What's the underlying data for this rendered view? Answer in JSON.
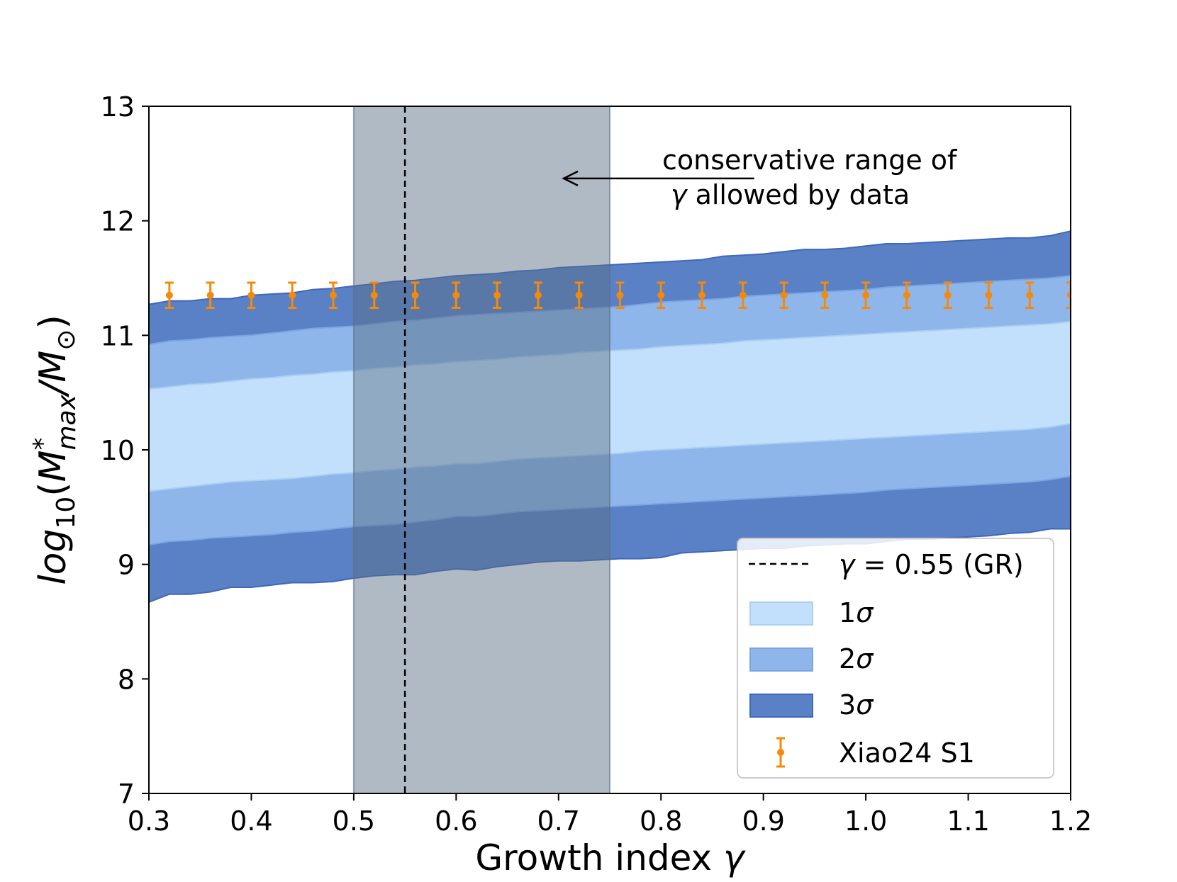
{
  "chart_data": {
    "type": "area",
    "title": "",
    "xlabel_prefix": "Growth index ",
    "xlabel_symbol": "γ",
    "ylabel_func": "log",
    "ylabel_func_sub": "10",
    "ylabel_paren_open": "(",
    "ylabel_M": "M",
    "ylabel_sup": "*",
    "ylabel_sub": "max",
    "ylabel_slash": "/",
    "ylabel_M2": "M",
    "ylabel_sub2": "⊙",
    "ylabel_paren_close": ")",
    "xlim": [
      0.3,
      1.2
    ],
    "ylim": [
      7,
      13
    ],
    "xticks": [
      0.3,
      0.4,
      0.5,
      0.6,
      0.7,
      0.8,
      0.9,
      1.0,
      1.1,
      1.2
    ],
    "xtick_labels": [
      "0.3",
      "0.4",
      "0.5",
      "0.6",
      "0.7",
      "0.8",
      "0.9",
      "1.0",
      "1.1",
      "1.2"
    ],
    "yticks": [
      7,
      8,
      9,
      10,
      11,
      12,
      13
    ],
    "ytick_labels": [
      "7",
      "8",
      "9",
      "10",
      "11",
      "12",
      "13"
    ],
    "grid": false,
    "x": [
      0.3,
      0.32,
      0.34,
      0.36,
      0.38,
      0.4,
      0.42,
      0.44,
      0.46,
      0.48,
      0.5,
      0.52,
      0.54,
      0.56,
      0.58,
      0.6,
      0.62,
      0.64,
      0.66,
      0.68,
      0.7,
      0.72,
      0.74,
      0.76,
      0.78,
      0.8,
      0.82,
      0.84,
      0.86,
      0.88,
      0.9,
      0.92,
      0.94,
      0.96,
      0.98,
      1.0,
      1.02,
      1.04,
      1.06,
      1.08,
      1.1,
      1.12,
      1.14,
      1.16,
      1.18,
      1.2
    ],
    "bands": [
      {
        "name": "3σ",
        "color": "#5a80c6",
        "lower": [
          8.67,
          8.74,
          8.74,
          8.76,
          8.8,
          8.8,
          8.82,
          8.84,
          8.84,
          8.85,
          8.88,
          8.9,
          8.91,
          8.91,
          8.94,
          8.96,
          8.95,
          8.98,
          9.0,
          9.02,
          9.03,
          9.03,
          9.04,
          9.05,
          9.05,
          9.06,
          9.1,
          9.11,
          9.12,
          9.13,
          9.14,
          9.14,
          9.16,
          9.17,
          9.18,
          9.18,
          9.2,
          9.22,
          9.22,
          9.23,
          9.24,
          9.25,
          9.27,
          9.28,
          9.31,
          9.31
        ],
        "upper": [
          11.27,
          11.3,
          11.3,
          11.32,
          11.32,
          11.35,
          11.36,
          11.37,
          11.4,
          11.41,
          11.43,
          11.45,
          11.47,
          11.48,
          11.5,
          11.52,
          11.53,
          11.54,
          11.56,
          11.57,
          11.59,
          11.6,
          11.61,
          11.62,
          11.63,
          11.64,
          11.65,
          11.66,
          11.69,
          11.7,
          11.71,
          11.73,
          11.75,
          11.75,
          11.76,
          11.78,
          11.8,
          11.8,
          11.81,
          11.82,
          11.83,
          11.84,
          11.85,
          11.85,
          11.87,
          11.91
        ]
      },
      {
        "name": "2σ",
        "color": "#8fb6ea",
        "lower": [
          9.17,
          9.2,
          9.21,
          9.23,
          9.24,
          9.25,
          9.26,
          9.28,
          9.29,
          9.31,
          9.33,
          9.34,
          9.35,
          9.37,
          9.39,
          9.42,
          9.42,
          9.44,
          9.46,
          9.47,
          9.48,
          9.49,
          9.5,
          9.51,
          9.52,
          9.53,
          9.54,
          9.55,
          9.56,
          9.57,
          9.58,
          9.59,
          9.6,
          9.61,
          9.62,
          9.63,
          9.65,
          9.66,
          9.67,
          9.68,
          9.69,
          9.7,
          9.71,
          9.72,
          9.74,
          9.77
        ],
        "upper": [
          10.92,
          10.95,
          10.96,
          10.98,
          10.99,
          11.0,
          11.02,
          11.04,
          11.06,
          11.07,
          11.08,
          11.1,
          11.12,
          11.13,
          11.15,
          11.17,
          11.18,
          11.19,
          11.2,
          11.21,
          11.22,
          11.23,
          11.24,
          11.25,
          11.27,
          11.29,
          11.3,
          11.31,
          11.32,
          11.34,
          11.35,
          11.36,
          11.37,
          11.38,
          11.39,
          11.4,
          11.42,
          11.43,
          11.44,
          11.45,
          11.46,
          11.47,
          11.48,
          11.49,
          11.5,
          11.52
        ]
      },
      {
        "name": "1σ",
        "color": "#c2e0fb",
        "lower": [
          9.64,
          9.66,
          9.68,
          9.7,
          9.72,
          9.73,
          9.74,
          9.75,
          9.77,
          9.79,
          9.8,
          9.82,
          9.83,
          9.85,
          9.86,
          9.88,
          9.88,
          9.9,
          9.92,
          9.93,
          9.94,
          9.95,
          9.96,
          9.97,
          9.99,
          10.0,
          10.01,
          10.02,
          10.03,
          10.04,
          10.05,
          10.06,
          10.07,
          10.08,
          10.09,
          10.1,
          10.11,
          10.12,
          10.13,
          10.14,
          10.15,
          10.16,
          10.17,
          10.18,
          10.2,
          10.23
        ],
        "upper": [
          10.53,
          10.55,
          10.57,
          10.58,
          10.6,
          10.62,
          10.63,
          10.65,
          10.66,
          10.68,
          10.69,
          10.71,
          10.72,
          10.74,
          10.75,
          10.77,
          10.78,
          10.79,
          10.81,
          10.82,
          10.83,
          10.85,
          10.86,
          10.87,
          10.88,
          10.9,
          10.91,
          10.92,
          10.93,
          10.95,
          10.96,
          10.97,
          10.98,
          10.99,
          11.0,
          11.01,
          11.02,
          11.03,
          11.04,
          11.05,
          11.06,
          11.07,
          11.08,
          11.09,
          11.1,
          11.12
        ]
      }
    ],
    "errorbars": {
      "name": "Xiao24 S1",
      "color": "#f58a0a",
      "x": [
        0.32,
        0.36,
        0.4,
        0.44,
        0.48,
        0.52,
        0.56,
        0.6,
        0.64,
        0.68,
        0.72,
        0.76,
        0.8,
        0.84,
        0.88,
        0.92,
        0.96,
        1.0,
        1.04,
        1.08,
        1.12,
        1.16,
        1.2
      ],
      "y": [
        11.35,
        11.35,
        11.35,
        11.35,
        11.35,
        11.35,
        11.35,
        11.35,
        11.35,
        11.35,
        11.35,
        11.35,
        11.35,
        11.35,
        11.35,
        11.35,
        11.35,
        11.35,
        11.35,
        11.35,
        11.35,
        11.35,
        11.35
      ],
      "yerr": 0.11
    },
    "shaded_span": {
      "x_range": [
        0.5,
        0.75
      ],
      "color": "#5a6e86",
      "alpha": 0.48
    },
    "vline": {
      "x": 0.55,
      "label_symbol": "γ",
      "label_rest": " = 0.55 (GR)"
    },
    "annotation": {
      "line1": "conservative range of",
      "line2_symbol": "γ",
      "line2_rest": " allowed by data",
      "arrow_from": [
        0.891,
        12.37
      ],
      "arrow_to": [
        0.705,
        12.37
      ]
    },
    "legend": {
      "placement": "lower-right",
      "entries": [
        "vline",
        "1σ",
        "2σ",
        "3σ",
        "Xiao24 S1"
      ]
    }
  }
}
